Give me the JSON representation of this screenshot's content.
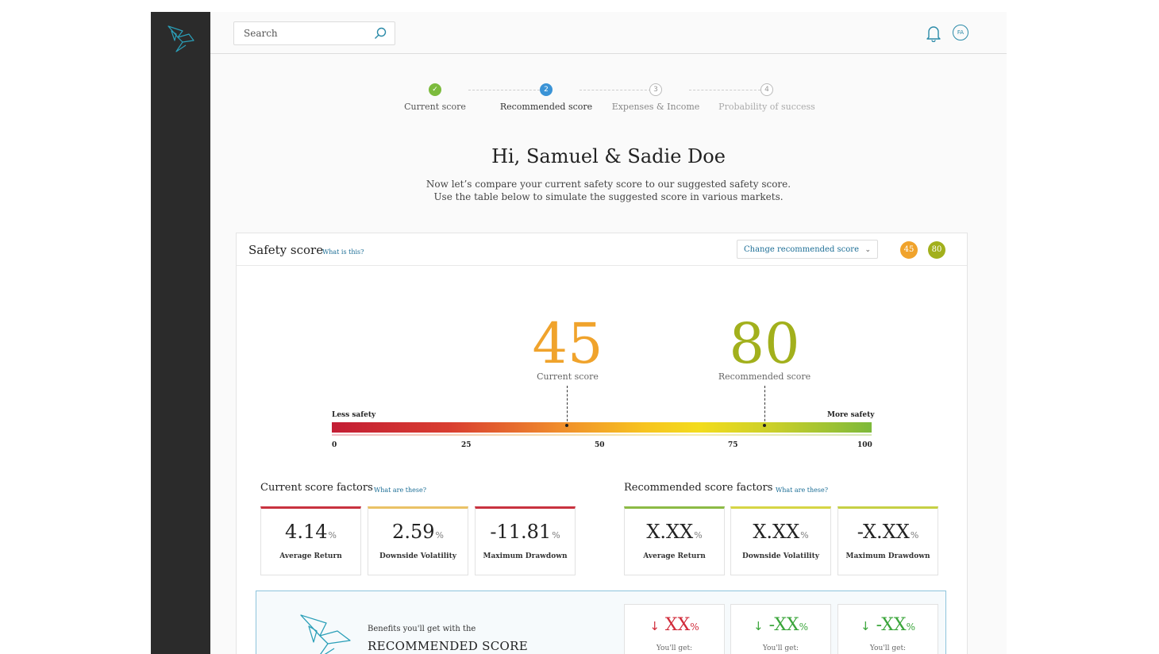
{
  "topbar": {
    "search_placeholder": "Search",
    "avatar_initials": "FA",
    "icons": [
      "search-icon",
      "bell-icon"
    ]
  },
  "stepper": {
    "steps": [
      {
        "number": "✓",
        "label": "Current score",
        "state": "done"
      },
      {
        "number": "2",
        "label": "Recommended score",
        "state": "active"
      },
      {
        "number": "3",
        "label": "Expenses & Income",
        "state": "todo"
      },
      {
        "number": "4",
        "label": "Probability of success",
        "state": "todo"
      }
    ]
  },
  "greeting": "Hi, Samuel & Sadie Doe",
  "intro": {
    "line1": "Now let’s compare your current safety score to our suggested safety score.",
    "line2": "Use the table below to simulate the suggested score in various markets."
  },
  "safety": {
    "title": "Safety score",
    "what_link": "What is this?",
    "change_button": "Change recommended score",
    "badge_current": "45",
    "badge_recommended": "80",
    "current_score": "45",
    "current_caption": "Current score",
    "recommended_score": "80",
    "recommended_caption": "Recommended score",
    "scale_left": "Less safety",
    "scale_right": "More safety",
    "ticks": [
      "0",
      "25",
      "50",
      "75",
      "100"
    ],
    "colors": {
      "current": "#f0a32c",
      "recommended": "#a2b01c",
      "accent": "#1c6e96"
    }
  },
  "current_factors": {
    "title": "Current score factors",
    "link": "What are these?",
    "items": [
      {
        "value": "4.14",
        "unit": "%",
        "label": "Average Return"
      },
      {
        "value": "2.59",
        "unit": "%",
        "label": "Downside Volatility"
      },
      {
        "value": "-11.81",
        "unit": "%",
        "label": "Maximum Drawdown"
      }
    ]
  },
  "recommended_factors": {
    "title": "Recommended score factors",
    "link": "What are these?",
    "items": [
      {
        "value": "X.XX",
        "unit": "%",
        "label": "Average Return"
      },
      {
        "value": "X.XX",
        "unit": "%",
        "label": "Downside Volatility"
      },
      {
        "value": "-X.XX",
        "unit": "%",
        "label": "Maximum Drawdown"
      }
    ]
  },
  "benefits": {
    "line1": "Benefits you'll get with the",
    "line2": "RECOMMENDED SCORE",
    "items": [
      {
        "arrow": "↓",
        "value": "XX",
        "unit": "%",
        "caption": "You'll get:",
        "color": "#d12b3a"
      },
      {
        "arrow": "↓",
        "value": "-XX",
        "unit": "%",
        "caption": "You'll get:",
        "color": "#3aa53a"
      },
      {
        "arrow": "↓",
        "value": "-XX",
        "unit": "%",
        "caption": "You'll get:",
        "color": "#3aa53a"
      }
    ]
  }
}
